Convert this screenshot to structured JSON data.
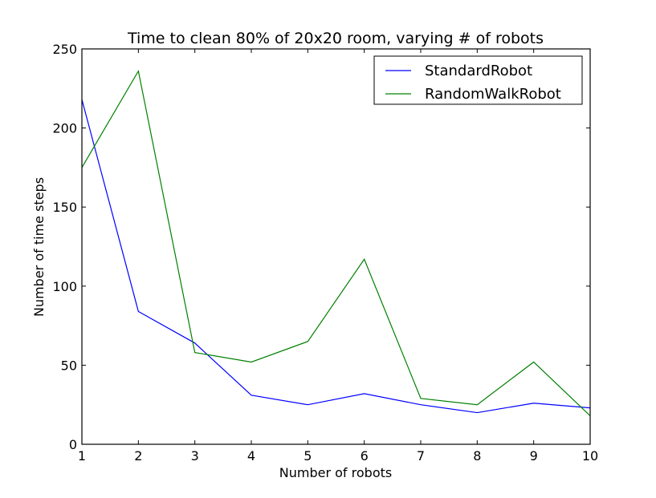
{
  "chart_data": {
    "type": "line",
    "title": "Time to clean 80% of 20x20 room, varying # of robots",
    "xlabel": "Number of robots",
    "ylabel": "Number of time steps",
    "x": [
      1,
      2,
      3,
      4,
      5,
      6,
      7,
      8,
      9,
      10
    ],
    "xlim": [
      1,
      10
    ],
    "ylim": [
      0,
      250
    ],
    "xticks": [
      "1",
      "2",
      "3",
      "4",
      "5",
      "6",
      "7",
      "8",
      "9",
      "10"
    ],
    "yticks": [
      "0",
      "50",
      "100",
      "150",
      "200",
      "250"
    ],
    "grid": false,
    "legend_position": "top-right",
    "series": [
      {
        "name": "StandardRobot",
        "color": "#0000ff",
        "values": [
          218,
          84,
          64,
          31,
          25,
          32,
          25,
          20,
          26,
          23
        ]
      },
      {
        "name": "RandomWalkRobot",
        "color": "#008000",
        "values": [
          175,
          236,
          58,
          52,
          65,
          117,
          29,
          25,
          52,
          18
        ]
      }
    ]
  }
}
